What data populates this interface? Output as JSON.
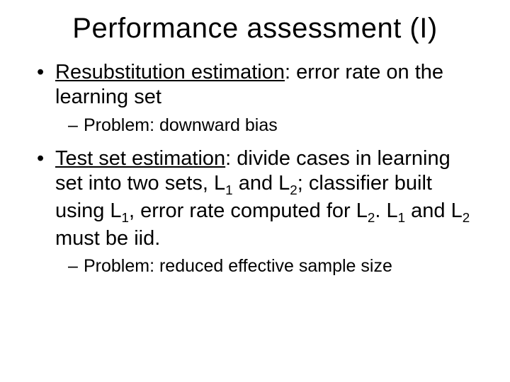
{
  "slide": {
    "title": "Performance assessment (I)",
    "background_color": "#ffffff",
    "text_color": "#000000",
    "title_fontsize": 40,
    "body_fontsize": 29,
    "sub_fontsize": 25,
    "font_family": "Comic Sans MS",
    "bullets": [
      {
        "lead_underlined": "Resubstitution estimation",
        "rest": ":  error rate on the learning set",
        "sub": [
          {
            "text": "Problem:  downward bias"
          }
        ]
      },
      {
        "lead_underlined": "Test set estimation",
        "rest_html": ":  divide cases in learning set into two sets, L<sub>1</sub> and L<sub>2</sub>; classifier built using L<sub>1</sub>, error rate computed for L<sub>2</sub>.  L<sub>1</sub> and L<sub>2</sub> must be iid.",
        "sub": [
          {
            "text": "Problem:  reduced effective sample size"
          }
        ]
      }
    ]
  }
}
